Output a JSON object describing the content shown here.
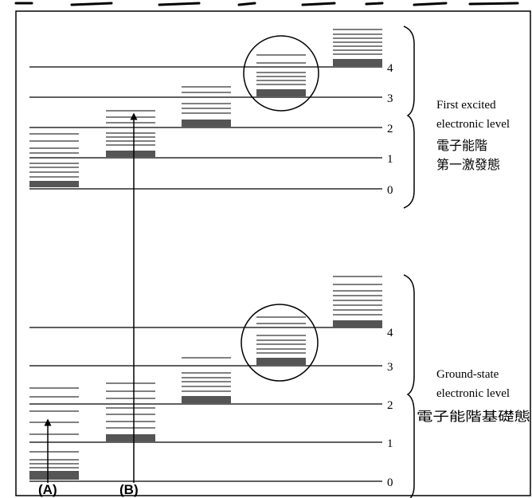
{
  "excited_state": {
    "level_numbers": [
      "0",
      "1",
      "2",
      "3",
      "4"
    ],
    "label_en_line1": "First excited",
    "label_en_line2": "electronic level",
    "label_zh_line1": "電子能階",
    "label_zh_line2": "第一激發態"
  },
  "ground_state": {
    "level_numbers": [
      "0",
      "1",
      "2",
      "3",
      "4"
    ],
    "label_en_line1": "Ground-state",
    "label_en_line2": "electronic level",
    "label_zh_line1": "電子能階基礎態"
  },
  "arrows": [
    {
      "name": "arrow-a",
      "label": "(A)"
    },
    {
      "name": "arrow-b",
      "label": "(B)"
    }
  ],
  "colors": {
    "line": "#000000",
    "band": "#555555"
  }
}
